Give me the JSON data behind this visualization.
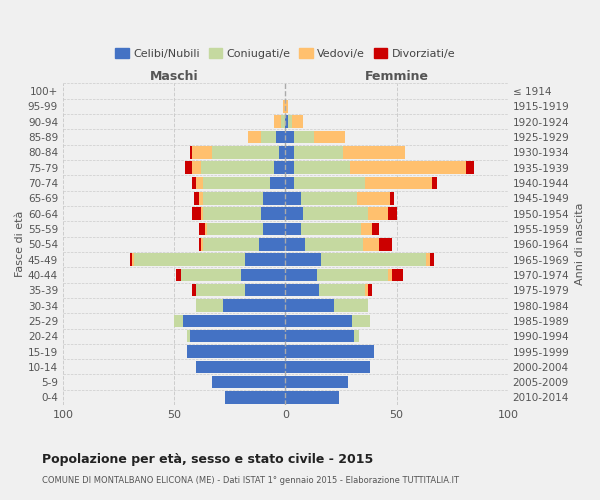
{
  "age_groups": [
    "0-4",
    "5-9",
    "10-14",
    "15-19",
    "20-24",
    "25-29",
    "30-34",
    "35-39",
    "40-44",
    "45-49",
    "50-54",
    "55-59",
    "60-64",
    "65-69",
    "70-74",
    "75-79",
    "80-84",
    "85-89",
    "90-94",
    "95-99",
    "100+"
  ],
  "birth_years": [
    "2010-2014",
    "2005-2009",
    "2000-2004",
    "1995-1999",
    "1990-1994",
    "1985-1989",
    "1980-1984",
    "1975-1979",
    "1970-1974",
    "1965-1969",
    "1960-1964",
    "1955-1959",
    "1950-1954",
    "1945-1949",
    "1940-1944",
    "1935-1939",
    "1930-1934",
    "1925-1929",
    "1920-1924",
    "1915-1919",
    "≤ 1914"
  ],
  "maschi": {
    "celibi": [
      27,
      33,
      40,
      44,
      43,
      46,
      28,
      18,
      20,
      18,
      12,
      10,
      11,
      10,
      7,
      5,
      3,
      4,
      0,
      0,
      0
    ],
    "coniugati": [
      0,
      0,
      0,
      0,
      1,
      4,
      12,
      22,
      27,
      50,
      25,
      25,
      26,
      27,
      30,
      33,
      30,
      7,
      2,
      0,
      0
    ],
    "vedovi": [
      0,
      0,
      0,
      0,
      0,
      0,
      0,
      0,
      0,
      1,
      1,
      1,
      1,
      2,
      3,
      4,
      9,
      6,
      3,
      1,
      0
    ],
    "divorziati": [
      0,
      0,
      0,
      0,
      0,
      0,
      0,
      2,
      2,
      1,
      1,
      3,
      4,
      2,
      2,
      3,
      1,
      0,
      0,
      0,
      0
    ]
  },
  "femmine": {
    "nubili": [
      24,
      28,
      38,
      40,
      31,
      30,
      22,
      15,
      14,
      16,
      9,
      7,
      8,
      7,
      4,
      4,
      4,
      4,
      1,
      0,
      0
    ],
    "coniugate": [
      0,
      0,
      0,
      0,
      2,
      8,
      15,
      21,
      32,
      47,
      26,
      27,
      29,
      25,
      32,
      25,
      22,
      9,
      2,
      0,
      0
    ],
    "vedove": [
      0,
      0,
      0,
      0,
      0,
      0,
      0,
      1,
      2,
      2,
      7,
      5,
      9,
      15,
      30,
      52,
      28,
      14,
      5,
      1,
      0
    ],
    "divorziate": [
      0,
      0,
      0,
      0,
      0,
      0,
      0,
      2,
      5,
      2,
      6,
      3,
      4,
      2,
      2,
      4,
      0,
      0,
      0,
      0,
      0
    ]
  },
  "colors": {
    "celibi_nubili": "#4472c4",
    "coniugati": "#c5d9a0",
    "vedovi": "#ffc06e",
    "divorziati": "#cc0000"
  },
  "title": "Popolazione per età, sesso e stato civile - 2015",
  "subtitle": "COMUNE DI MONTALBANO ELICONA (ME) - Dati ISTAT 1° gennaio 2015 - Elaborazione TUTTITALIA.IT",
  "xlabel_left": "Maschi",
  "xlabel_right": "Femmine",
  "ylabel_left": "Fasce di età",
  "ylabel_right": "Anni di nascita",
  "xlim": 100,
  "background_color": "#f0f0f0",
  "legend_labels": [
    "Celibi/Nubili",
    "Coniugati/e",
    "Vedovi/e",
    "Divorziati/e"
  ]
}
